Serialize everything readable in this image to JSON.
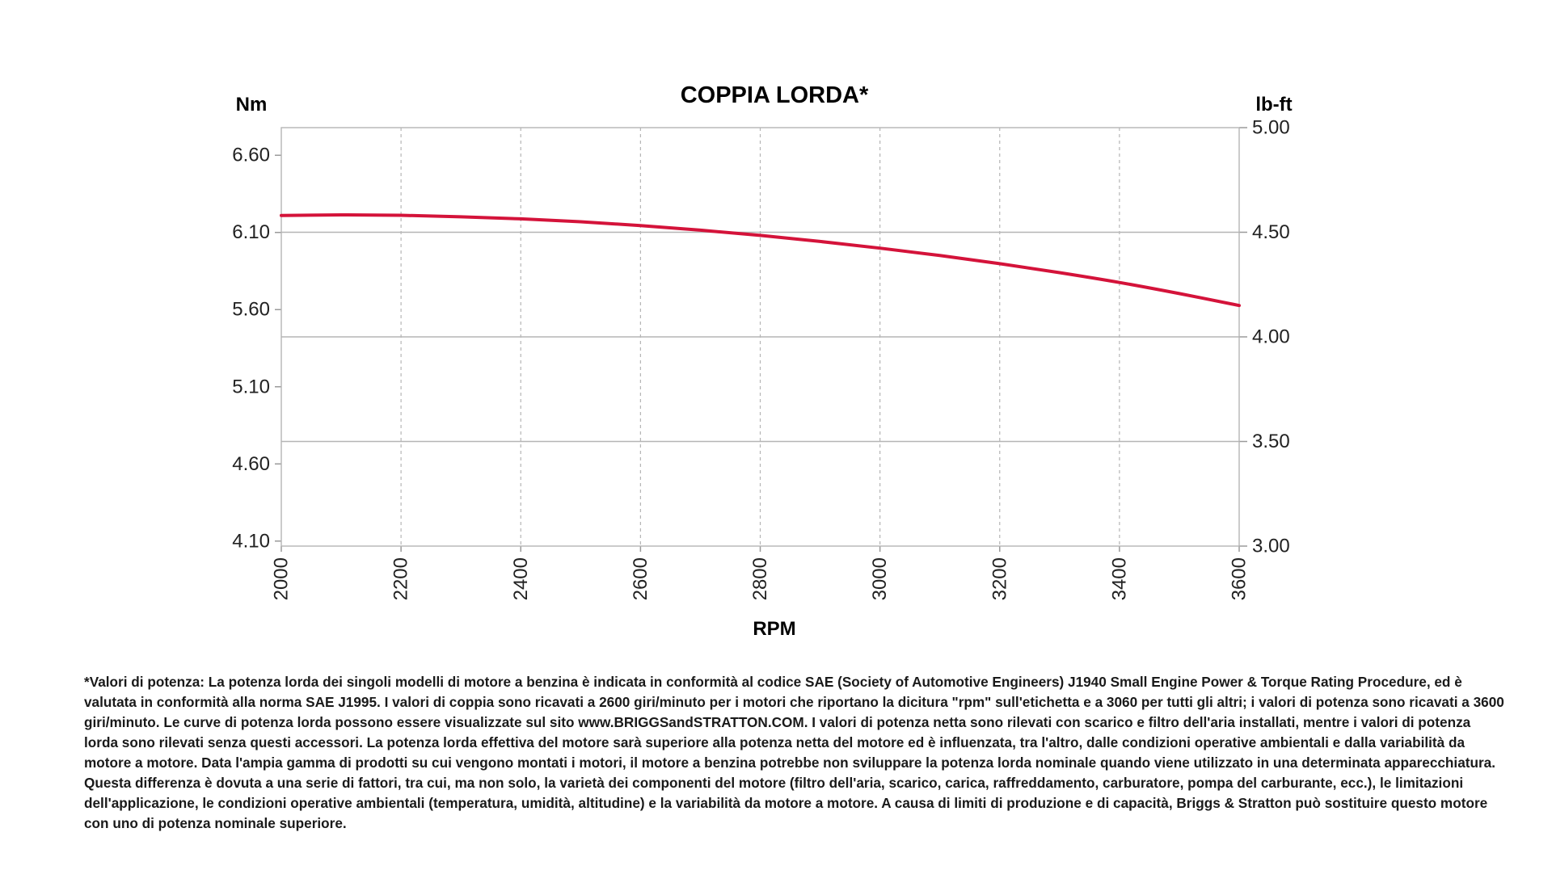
{
  "chart_data": {
    "type": "line",
    "title": "COPPIA LORDA*",
    "xlabel": "RPM",
    "ylabel_left": "Nm",
    "ylabel_right": "lb-ft",
    "x_ticks": [
      2000,
      2200,
      2400,
      2600,
      2800,
      3000,
      3200,
      3400,
      3600
    ],
    "y_left_ticks": [
      "4.10",
      "4.60",
      "5.10",
      "5.60",
      "6.10",
      "6.60"
    ],
    "y_right_ticks": [
      "3.00",
      "3.50",
      "4.00",
      "4.50",
      "5.00"
    ],
    "xlim": [
      2000,
      3600
    ],
    "ylim_right": [
      3.0,
      5.0
    ],
    "ylim_left": [
      4.0675,
      6.7791
    ],
    "grid": true,
    "line_color": "#d4133a",
    "series": [
      {
        "x": [
          2000,
          2100,
          2200,
          2300,
          2400,
          2500,
          2600,
          2700,
          2800,
          2900,
          3000,
          3100,
          3200,
          3300,
          3400,
          3500,
          3600
        ],
        "values": [
          4.58,
          4.583,
          4.581,
          4.574,
          4.564,
          4.55,
          4.532,
          4.51,
          4.485,
          4.456,
          4.424,
          4.389,
          4.35,
          4.307,
          4.26,
          4.207,
          4.15
        ]
      }
    ]
  },
  "footnote": "*Valori di potenza: La potenza lorda dei singoli modelli di motore a benzina è indicata in conformità al codice SAE (Society of Automotive Engineers) J1940 Small Engine Power & Torque Rating Procedure, ed è valutata in conformità alla norma SAE J1995. I valori di coppia sono ricavati a 2600 giri/minuto per i motori che riportano la dicitura \"rpm\" sull'etichetta e a 3060 per tutti gli altri; i valori di potenza sono ricavati a 3600 giri/minuto. Le curve di potenza lorda possono essere visualizzate sul sito www.BRIGGSandSTRATTON.COM. I valori di potenza netta sono rilevati con scarico e filtro dell'aria installati, mentre i valori di potenza lorda sono rilevati senza questi accessori. La potenza lorda effettiva del motore sarà superiore alla potenza netta del motore ed è influenzata, tra l'altro, dalle condizioni operative ambientali e dalla variabilità da motore a motore. Data l'ampia gamma di prodotti su cui vengono montati i motori, il motore a benzina potrebbe non sviluppare la potenza lorda nominale quando viene utilizzato in una determinata apparecchiatura. Questa differenza è dovuta a una serie di fattori, tra cui, ma non solo, la varietà dei componenti del motore (filtro dell'aria, scarico, carica, raffreddamento, carburatore, pompa del carburante, ecc.), le limitazioni dell'applicazione, le condizioni operative ambientali (temperatura, umidità, altitudine) e la variabilità da motore a motore. A causa di limiti di produzione e di capacità, Briggs & Stratton può sostituire questo motore con uno di potenza nominale superiore."
}
